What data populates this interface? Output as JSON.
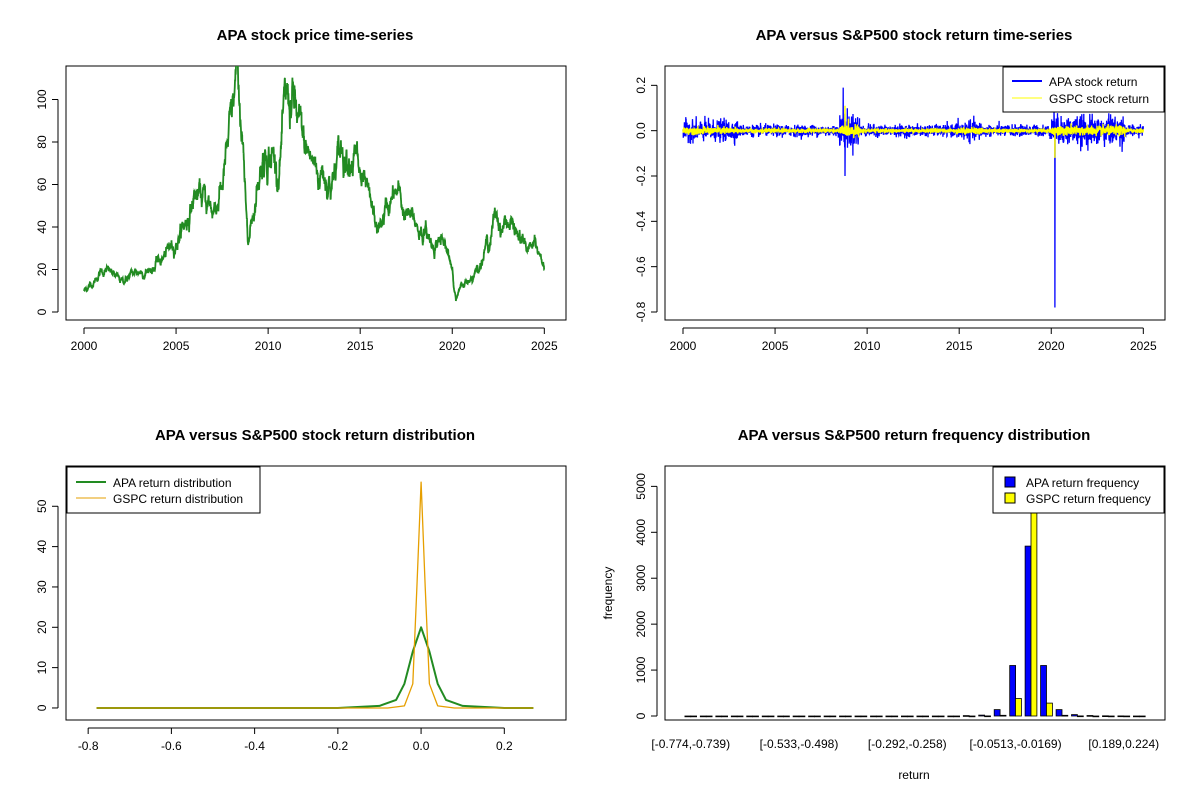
{
  "chart_data": [
    {
      "type": "line",
      "title": "APA stock price time-series",
      "xlabel": "",
      "ylabel": "",
      "xlim": [
        2000,
        2025.2
      ],
      "ylim": [
        0,
        112
      ],
      "x_ticks": [
        2000,
        2005,
        2010,
        2015,
        2020,
        2025
      ],
      "y_ticks": [
        0,
        20,
        40,
        60,
        80,
        100
      ],
      "series": [
        {
          "name": "APA stock price",
          "color": "#228b22",
          "x": [
            2000.0,
            2000.5,
            2001.0,
            2001.5,
            2002.0,
            2002.5,
            2003.0,
            2003.5,
            2004.0,
            2004.5,
            2005.0,
            2005.5,
            2006.0,
            2006.5,
            2007.0,
            2007.5,
            2008.0,
            2008.3,
            2008.5,
            2008.8,
            2009.0,
            2009.3,
            2009.6,
            2010.0,
            2010.5,
            2011.0,
            2011.3,
            2011.6,
            2011.9,
            2012.3,
            2012.7,
            2013.0,
            2013.5,
            2014.0,
            2014.5,
            2014.8,
            2015.0,
            2015.5,
            2016.0,
            2016.5,
            2017.0,
            2017.5,
            2018.0,
            2018.5,
            2018.9,
            2019.3,
            2019.7,
            2020.0,
            2020.2,
            2020.5,
            2020.9,
            2021.3,
            2021.7,
            2022.0,
            2022.4,
            2022.7,
            2023.0,
            2023.5,
            2024.0,
            2024.5,
            2025.0
          ],
          "values": [
            10,
            14,
            20,
            18,
            14,
            17,
            19,
            20,
            23,
            27,
            34,
            42,
            55,
            52,
            48,
            60,
            84,
            108,
            95,
            42,
            38,
            55,
            72,
            80,
            68,
            95,
            100,
            88,
            75,
            72,
            65,
            68,
            62,
            76,
            82,
            70,
            62,
            48,
            37,
            50,
            55,
            45,
            41,
            38,
            32,
            35,
            27,
            22,
            6,
            12,
            15,
            20,
            28,
            35,
            45,
            40,
            44,
            36,
            30,
            30,
            22
          ]
        }
      ]
    },
    {
      "type": "line",
      "title": "APA versus S&P500 stock return time-series",
      "xlabel": "",
      "ylabel": "",
      "xlim": [
        2000,
        2025.2
      ],
      "ylim": [
        -0.8,
        0.25
      ],
      "x_ticks": [
        2000,
        2005,
        2010,
        2015,
        2020,
        2025
      ],
      "y_ticks": [
        -0.8,
        -0.6,
        -0.4,
        -0.2,
        0.0,
        0.2
      ],
      "y_tick_labels": [
        "-0.8",
        "-0.6",
        "-0.4",
        "-0.2",
        "0.0",
        "0.2"
      ],
      "legend": "top-right",
      "series": [
        {
          "name": "APA stock return",
          "color": "#0000ff",
          "x": [
            2000.0,
            2008.7,
            2008.8,
            2008.9,
            2020.15,
            2020.2,
            2020.25,
            2025.0
          ],
          "values": [
            0.0,
            0.19,
            -0.2,
            0.0,
            0.1,
            -0.78,
            0.0,
            0.0
          ]
        },
        {
          "name": "GSPC stock return",
          "color": "#ffff00",
          "x": [
            2000.0,
            2008.8,
            2020.2,
            2025.0
          ],
          "values": [
            0.0,
            0.11,
            -0.12,
            0.0
          ]
        }
      ]
    },
    {
      "type": "line",
      "title": "APA versus S&P500 stock return distribution",
      "xlabel": "",
      "ylabel": "",
      "xlim": [
        -0.81,
        0.305
      ],
      "ylim": [
        -1,
        58
      ],
      "x_ticks": [
        -0.8,
        -0.6,
        -0.4,
        -0.2,
        0.0,
        0.2
      ],
      "x_tick_labels": [
        "-0.8",
        "-0.6",
        "-0.4",
        "-0.2",
        "0.0",
        "0.2"
      ],
      "y_ticks": [
        0,
        10,
        20,
        30,
        40,
        50
      ],
      "legend": "top-left",
      "series": [
        {
          "name": "APA return distribution",
          "color": "#228b22",
          "x": [
            -0.78,
            -0.2,
            -0.1,
            -0.06,
            -0.04,
            -0.02,
            0.0,
            0.02,
            0.04,
            0.06,
            0.1,
            0.2,
            0.27
          ],
          "values": [
            0,
            0,
            0.5,
            2.0,
            6.0,
            14.0,
            20.0,
            14.0,
            6.0,
            2.0,
            0.5,
            0.0,
            0.0
          ]
        },
        {
          "name": "GSPC return distribution",
          "color": "#e69f00",
          "x": [
            -0.78,
            -0.08,
            -0.04,
            -0.02,
            -0.01,
            0.0,
            0.01,
            0.02,
            0.04,
            0.08,
            0.27
          ],
          "values": [
            0,
            0,
            0.5,
            6.0,
            30.0,
            56.0,
            30.0,
            6.0,
            0.5,
            0.0,
            0.0
          ]
        }
      ]
    },
    {
      "type": "bar",
      "title": "APA versus S&P500 return frequency distribution",
      "xlabel": "return",
      "ylabel": "frequency",
      "ylim": [
        0,
        5400
      ],
      "y_ticks": [
        0,
        1000,
        2000,
        3000,
        4000,
        5000
      ],
      "x_tick_labels": [
        "[-0.774,-0.739)",
        "[-0.533,-0.498)",
        "[-0.292,-0.258)",
        "[-0.0513,-0.0169)",
        "[0.189,0.224)"
      ],
      "x_tick_bins": [
        0,
        7,
        14,
        21,
        28
      ],
      "legend": "top-right",
      "series": [
        {
          "name": "APA return frequency",
          "color": "#0000ff",
          "values": [
            1,
            0,
            0,
            0,
            0,
            0,
            0,
            0,
            0,
            0,
            0,
            0,
            0,
            0,
            0,
            0,
            0,
            0,
            8,
            20,
            140,
            1100,
            3700,
            1100,
            140,
            30,
            10,
            5,
            2,
            1
          ]
        },
        {
          "name": "GSPC return frequency",
          "color": "#ffff00",
          "values": [
            0,
            0,
            0,
            0,
            0,
            0,
            0,
            0,
            0,
            0,
            0,
            0,
            0,
            0,
            0,
            0,
            0,
            0,
            0,
            3,
            15,
            380,
            5300,
            280,
            15,
            3,
            0,
            0,
            0,
            0
          ]
        }
      ]
    }
  ]
}
